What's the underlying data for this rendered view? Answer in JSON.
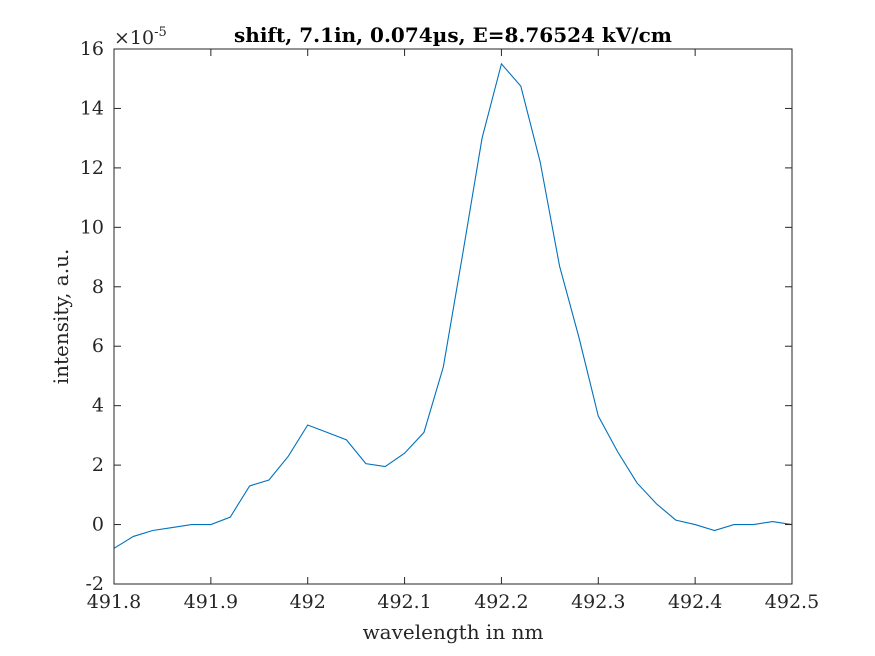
{
  "chart_data": {
    "type": "line",
    "title": "shift, 7.1in, 0.074µs, E=8.76524 kV/cm",
    "xlabel": "wavelength in nm",
    "ylabel": "intensity, a.u.",
    "y_multiplier_base": "×10",
    "y_multiplier_exp": "-5",
    "xlim": [
      491.8,
      492.5
    ],
    "ylim": [
      -2,
      16
    ],
    "x_ticks": [
      491.8,
      491.9,
      492.0,
      492.1,
      492.2,
      492.3,
      492.4,
      492.5
    ],
    "x_tick_labels": [
      "491.8",
      "491.9",
      "492",
      "492.1",
      "492.2",
      "492.3",
      "492.4",
      "492.5"
    ],
    "y_ticks": [
      -2,
      0,
      2,
      4,
      6,
      8,
      10,
      12,
      14,
      16
    ],
    "y_tick_labels": [
      "-2",
      "0",
      "2",
      "4",
      "6",
      "8",
      "10",
      "12",
      "14",
      "16"
    ],
    "grid": false,
    "line_color": "#0072BD",
    "axis_color": "#262626",
    "series": [
      {
        "x": [
          491.8,
          491.82,
          491.84,
          491.86,
          491.88,
          491.9,
          491.92,
          491.94,
          491.96,
          491.98,
          492.0,
          492.02,
          492.04,
          492.06,
          492.08,
          492.1,
          492.12,
          492.14,
          492.16,
          492.18,
          492.2,
          492.22,
          492.24,
          492.26,
          492.28,
          492.3,
          492.32,
          492.34,
          492.36,
          492.38,
          492.4,
          492.42,
          492.44,
          492.46,
          492.48,
          492.5
        ],
        "y": [
          -0.8,
          -0.4,
          -0.2,
          -0.1,
          0.0,
          0.0,
          0.25,
          1.3,
          1.5,
          2.3,
          3.35,
          3.1,
          2.85,
          2.05,
          1.95,
          2.4,
          3.1,
          5.3,
          9.1,
          13.0,
          15.5,
          14.75,
          12.2,
          8.7,
          6.3,
          3.65,
          2.45,
          1.4,
          0.7,
          0.15,
          0.0,
          -0.2,
          0.0,
          0.0,
          0.1,
          0.0
        ]
      }
    ]
  }
}
